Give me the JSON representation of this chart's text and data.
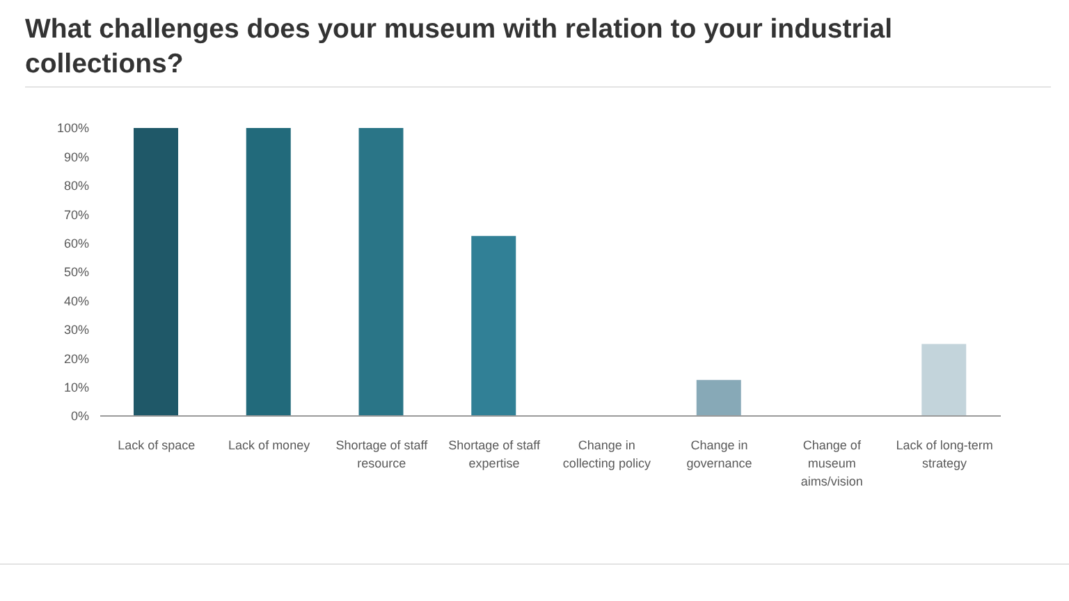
{
  "chart_data": {
    "type": "bar",
    "title": "What challenges does your museum with relation to your industrial collections?",
    "categories": [
      "Lack of space",
      "Lack of money",
      "Shortage of staff resource",
      "Shortage of staff expertise",
      "Change in collecting policy",
      "Change in governance",
      "Change of museum aims/vision",
      "Lack of long-term strategy"
    ],
    "values": [
      100,
      100,
      100,
      62.5,
      0,
      12.5,
      0,
      25
    ],
    "colors": [
      "#1f5868",
      "#226a7b",
      "#2a7587",
      "#318096",
      "#5a93a8",
      "#87a9b7",
      "#a8bfc9",
      "#c3d4db"
    ],
    "ylim": [
      0,
      100
    ],
    "yticks": [
      {
        "value": 0,
        "label": "0%"
      },
      {
        "value": 10,
        "label": "10%"
      },
      {
        "value": 20,
        "label": "20%"
      },
      {
        "value": 30,
        "label": "30%"
      },
      {
        "value": 40,
        "label": "40%"
      },
      {
        "value": 50,
        "label": "50%"
      },
      {
        "value": 60,
        "label": "60%"
      },
      {
        "value": 70,
        "label": "70%"
      },
      {
        "value": 80,
        "label": "80%"
      },
      {
        "value": 90,
        "label": "90%"
      },
      {
        "value": 100,
        "label": "100%"
      }
    ]
  }
}
